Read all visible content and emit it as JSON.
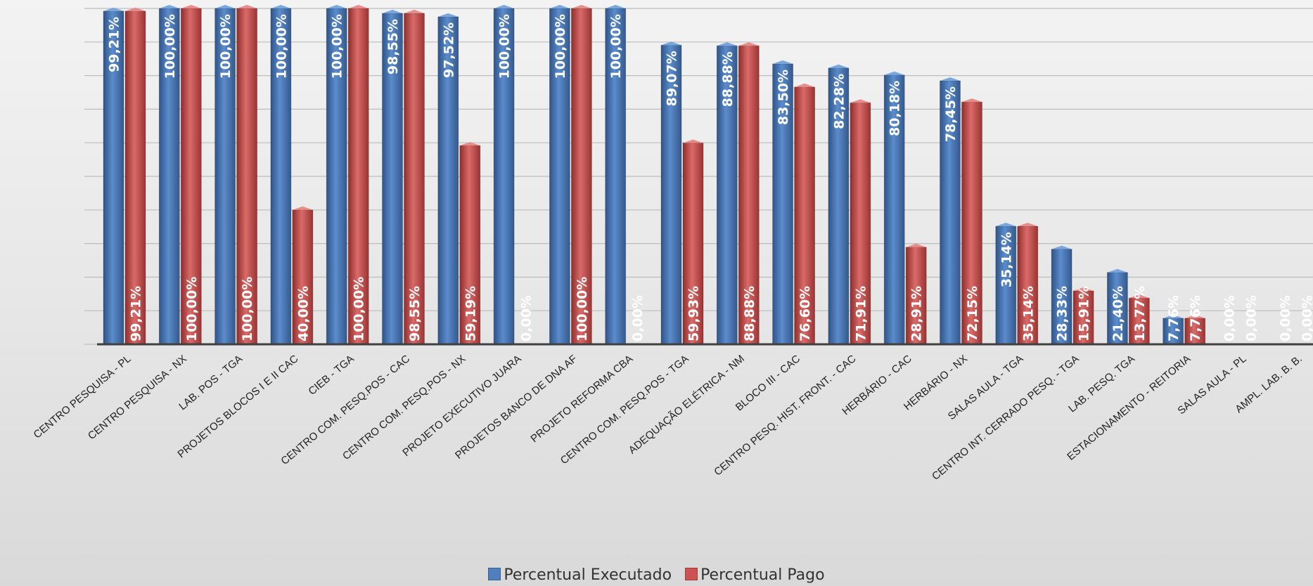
{
  "colors": {
    "executed": "#4f7fbd",
    "paid": "#cd5352",
    "grid": "#bdbdbd",
    "axis": "#404040"
  },
  "chart_data": {
    "type": "bar",
    "title": "",
    "xlabel": "",
    "ylabel": "",
    "ylim": [
      0,
      100
    ],
    "grid": true,
    "legend_position": "bottom",
    "categories": [
      "CENTRO PESQUISA - PL",
      "CENTRO PESQUISA - NX",
      "LAB. POS - TGA",
      "PROJETOS BLOCOS I E II CAC",
      "CIEB - TGA",
      "CENTRO COM. PESQ.POS - CAC",
      "CENTRO COM. PESQ.POS - NX",
      "PROJETO EXECUTIVO JUARA",
      "PROJETOS BANCO DE DNA AF",
      "PROJETO REFORMA CBA",
      "CENTRO COM. PESQ.POS - TGA",
      "ADEQUAÇÃO ELÉTRICA - NM",
      "BLOCO III - CAC",
      "CENTRO PESQ. HIST. FRONT. - CAC",
      "HERBÁRIO - CAC",
      "HERBÁRIO - NX",
      "SALAS AULA - TGA",
      "CENTRO INT. CERRADO PESQ. - TGA",
      "LAB. PESQ. TGA",
      "ESTACIONAMENTO - REITORIA",
      "SALAS AULA - PL",
      "AMPL. LAB. B. B."
    ],
    "series": [
      {
        "name": "Percentual Executado",
        "values": [
          99.21,
          100.0,
          100.0,
          100.0,
          100.0,
          98.55,
          97.52,
          100.0,
          100.0,
          100.0,
          89.07,
          88.88,
          83.5,
          82.28,
          80.18,
          78.45,
          35.14,
          28.33,
          21.4,
          7.76,
          0.0,
          0.0
        ],
        "labels": [
          "99,21%",
          "100,00%",
          "100,00%",
          "100,00%",
          "100,00%",
          "98,55%",
          "97,52%",
          "100,00%",
          "100,00%",
          "100,00%",
          "89,07%",
          "88,88%",
          "83,50%",
          "82,28%",
          "80,18%",
          "78,45%",
          "35,14%",
          "28,33%",
          "21,40%",
          "7,76%",
          "0,00%",
          "0,00%"
        ]
      },
      {
        "name": "Percentual Pago",
        "values": [
          99.21,
          100.0,
          100.0,
          40.0,
          100.0,
          98.55,
          59.19,
          0.0,
          100.0,
          0.0,
          59.93,
          88.88,
          76.6,
          71.91,
          28.91,
          72.15,
          35.14,
          15.91,
          13.77,
          7.76,
          0.0,
          0.0
        ],
        "labels": [
          "99,21%",
          "100,00%",
          "100,00%",
          "40,00%",
          "100,00%",
          "98,55%",
          "59,19%",
          "0,00%",
          "100,00%",
          "0,00%",
          "59,93%",
          "88,88%",
          "76,60%",
          "71,91%",
          "28,91%",
          "72,15%",
          "35,14%",
          "15,91%",
          "13,77%",
          "7,76%",
          "0,00%",
          "0,00%"
        ]
      }
    ]
  }
}
